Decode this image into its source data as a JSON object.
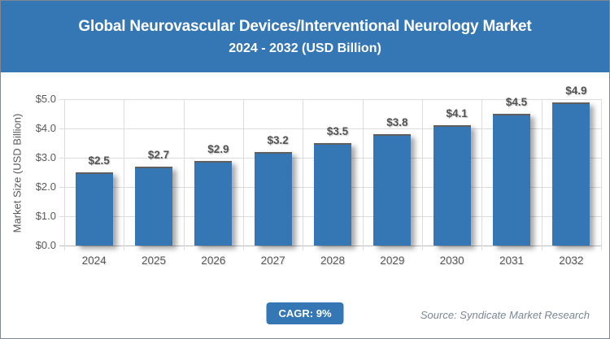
{
  "header": {
    "title_line1": "Global Neurovascular Devices/Interventional Neurology Market",
    "title_line2": "2024 - 2032 (USD Billion)"
  },
  "chart_data": {
    "type": "bar",
    "title": "Global Neurovascular Devices/Interventional Neurology Market 2024 - 2032 (USD Billion)",
    "categories": [
      "2024",
      "2025",
      "2026",
      "2027",
      "2028",
      "2029",
      "2030",
      "2031",
      "2032"
    ],
    "values": [
      2.5,
      2.7,
      2.9,
      3.2,
      3.5,
      3.8,
      4.1,
      4.5,
      4.9
    ],
    "value_labels": [
      "$2.5",
      "$2.7",
      "$2.9",
      "$3.2",
      "$3.5",
      "$3.8",
      "$4.1",
      "$4.5",
      "$4.9"
    ],
    "xlabel": "",
    "ylabel": "Market Size (USD Billion)",
    "ylim": [
      0,
      5
    ],
    "ytick_step": 1,
    "ytick_labels": [
      "$0.0",
      "$1.0",
      "$2.0",
      "$3.0",
      "$4.0",
      "$5.0"
    ],
    "grid": true,
    "legend": "none",
    "bar_color": "#3577B5"
  },
  "footer": {
    "cagr_label": "CAGR: 9%",
    "source": "Source: Syndicate Market Research"
  },
  "colors": {
    "accent_blue": "#3577B5",
    "axis_text": "#595959",
    "grid_line": "#dcdcdc",
    "source_text": "#7c8793"
  }
}
